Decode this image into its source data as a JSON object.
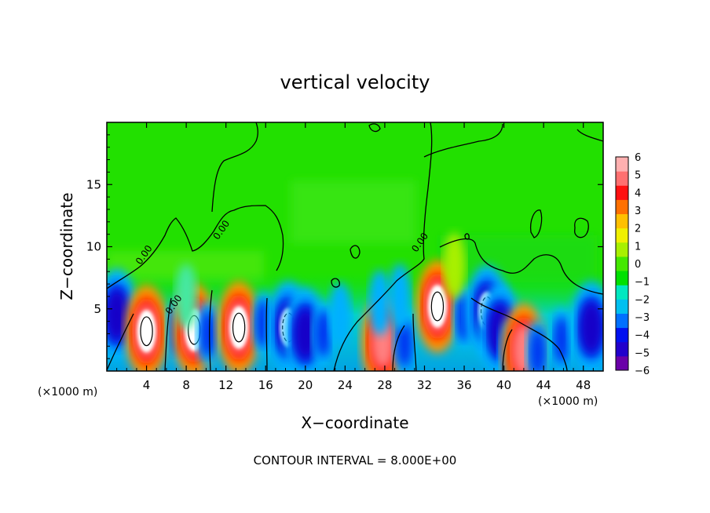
{
  "chart_data": {
    "type": "heatmap",
    "title": "vertical velocity",
    "xlabel": "X−coordinate",
    "ylabel": "Z−coordinate",
    "x_unit_left": "(×1000 m)",
    "x_unit_right": "(×1000 m)",
    "footer": "CONTOUR INTERVAL = 8.000E+00",
    "xlim": [
      0,
      50
    ],
    "ylim": [
      0,
      20
    ],
    "x_ticks": [
      "4",
      "8",
      "12",
      "16",
      "20",
      "24",
      "28",
      "32",
      "36",
      "40",
      "44",
      "48"
    ],
    "x_tick_values": [
      4,
      8,
      12,
      16,
      20,
      24,
      28,
      32,
      36,
      40,
      44,
      48
    ],
    "y_ticks": [
      "5",
      "10",
      "15"
    ],
    "y_tick_values": [
      5,
      10,
      15
    ],
    "contour_labels": [
      {
        "text": "0.00",
        "x": 4.0,
        "y": 9.2
      },
      {
        "text": "0.00",
        "x": 7.0,
        "y": 5.2
      },
      {
        "text": "0.00",
        "x": 11.8,
        "y": 11.2
      },
      {
        "text": "0.00",
        "x": 31.8,
        "y": 10.2
      }
    ],
    "colorbar": {
      "min": -6,
      "max": 6,
      "labels": [
        "6",
        "5",
        "4",
        "3",
        "2",
        "1",
        "0",
        "−1",
        "−2",
        "−3",
        "−4",
        "−5",
        "−6"
      ],
      "label_values": [
        6,
        5,
        4,
        3,
        2,
        1,
        0,
        -1,
        -2,
        -3,
        -4,
        -5,
        -6
      ],
      "colors": [
        "#6a00a8",
        "#2200cc",
        "#0010f0",
        "#0070ff",
        "#00c0f0",
        "#00e8c0",
        "#00e000",
        "#44e800",
        "#a8f000",
        "#f0f000",
        "#ffc000",
        "#ff7000",
        "#ff1010",
        "#ff7070",
        "#ffb0b0"
      ]
    },
    "cells": [
      {
        "x": 1.0,
        "z": 4.5,
        "w": -6
      },
      {
        "x": 4.0,
        "z": 3.2,
        "w": 10
      },
      {
        "x": 7.2,
        "z": 3.2,
        "w": -4
      },
      {
        "x": 8.8,
        "z": 3.3,
        "w": 10
      },
      {
        "x": 10.2,
        "z": 3.0,
        "w": -4
      },
      {
        "x": 13.3,
        "z": 3.5,
        "w": 12
      },
      {
        "x": 15.8,
        "z": 3.8,
        "w": -4
      },
      {
        "x": 18.3,
        "z": 3.5,
        "w": -9
      },
      {
        "x": 20.0,
        "z": 3.0,
        "w": -8
      },
      {
        "x": 21.8,
        "z": 3.0,
        "w": -4
      },
      {
        "x": 23.5,
        "z": 4.5,
        "w": -1.5
      },
      {
        "x": 27.8,
        "z": 2.3,
        "w": 7
      },
      {
        "x": 30.0,
        "z": 2.2,
        "w": -3
      },
      {
        "x": 27.5,
        "z": 5.5,
        "w": -1.5
      },
      {
        "x": 29.5,
        "z": 6.0,
        "w": -1.5
      },
      {
        "x": 33.3,
        "z": 5.2,
        "w": 11
      },
      {
        "x": 36.0,
        "z": 4.3,
        "w": -3
      },
      {
        "x": 38.3,
        "z": 4.8,
        "w": -9
      },
      {
        "x": 39.6,
        "z": 3.3,
        "w": -8
      },
      {
        "x": 40.6,
        "z": 1.5,
        "w": -3
      },
      {
        "x": 42.0,
        "z": 1.7,
        "w": 6
      },
      {
        "x": 43.4,
        "z": 1.5,
        "w": -3
      },
      {
        "x": 45.8,
        "z": 2.5,
        "w": -4
      },
      {
        "x": 48.8,
        "z": 3.5,
        "w": -6
      },
      {
        "x": 8.0,
        "z": 6.0,
        "w": -1
      },
      {
        "x": 35.0,
        "z": 8.5,
        "w": 0.8
      }
    ]
  }
}
